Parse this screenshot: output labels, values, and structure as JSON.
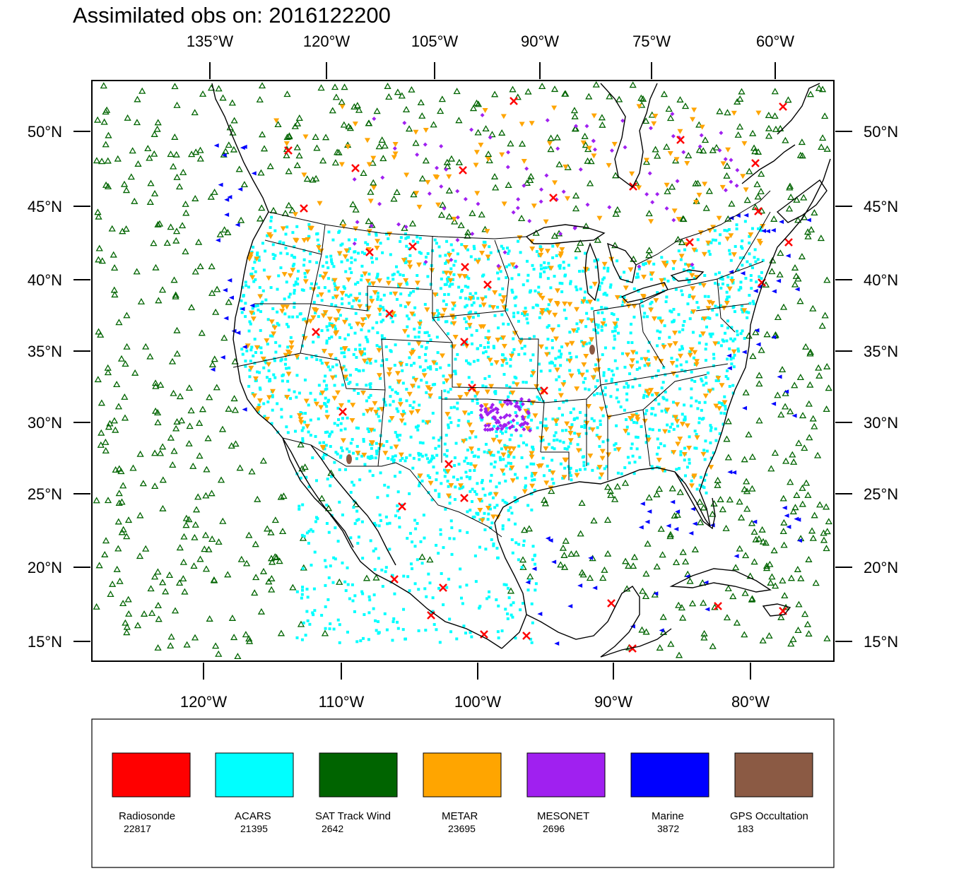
{
  "title": "Assimilated obs on: 2016122200",
  "top_axis_labels": [
    "135°W",
    "120°W",
    "105°W",
    "90°W",
    "75°W",
    "60°W"
  ],
  "bottom_axis_labels": [
    "120°W",
    "110°W",
    "100°W",
    "90°W",
    "80°W"
  ],
  "left_axis_labels": [
    "50°N",
    "45°N",
    "40°N",
    "35°N",
    "30°N",
    "25°N",
    "20°N",
    "15°N"
  ],
  "right_axis_labels": [
    "50°N",
    "45°N",
    "40°N",
    "35°N",
    "30°N",
    "25°N",
    "20°N",
    "15°N"
  ],
  "legend": [
    {
      "name": "Radiosonde",
      "count": "22817",
      "color": "#ff0000"
    },
    {
      "name": "ACARS",
      "count": "21395",
      "color": "#00ffff"
    },
    {
      "name": "SAT Track Wind",
      "count": "2642",
      "color": "#006400"
    },
    {
      "name": "METAR",
      "count": "23695",
      "color": "#ffa500"
    },
    {
      "name": "MESONET",
      "count": "2696",
      "color": "#a020f0"
    },
    {
      "name": "Marine",
      "count": "3872",
      "color": "#0000ff"
    },
    {
      "name": "GPS Occultation",
      "count": "183",
      "color": "#8b5a44"
    }
  ],
  "map": {
    "projection": "lambert-conformal",
    "extent": {
      "lon": [
        -128,
        -74
      ],
      "lat": [
        14,
        53
      ]
    },
    "observation_symbols": {
      "Radiosonde": "x-mark",
      "ACARS": "square-dot",
      "SAT Track Wind": "open-triangle-up",
      "METAR": "triangle-down",
      "MESONET": "diamond",
      "Marine": "triangle-left",
      "GPS Occultation": "small-blob"
    }
  }
}
